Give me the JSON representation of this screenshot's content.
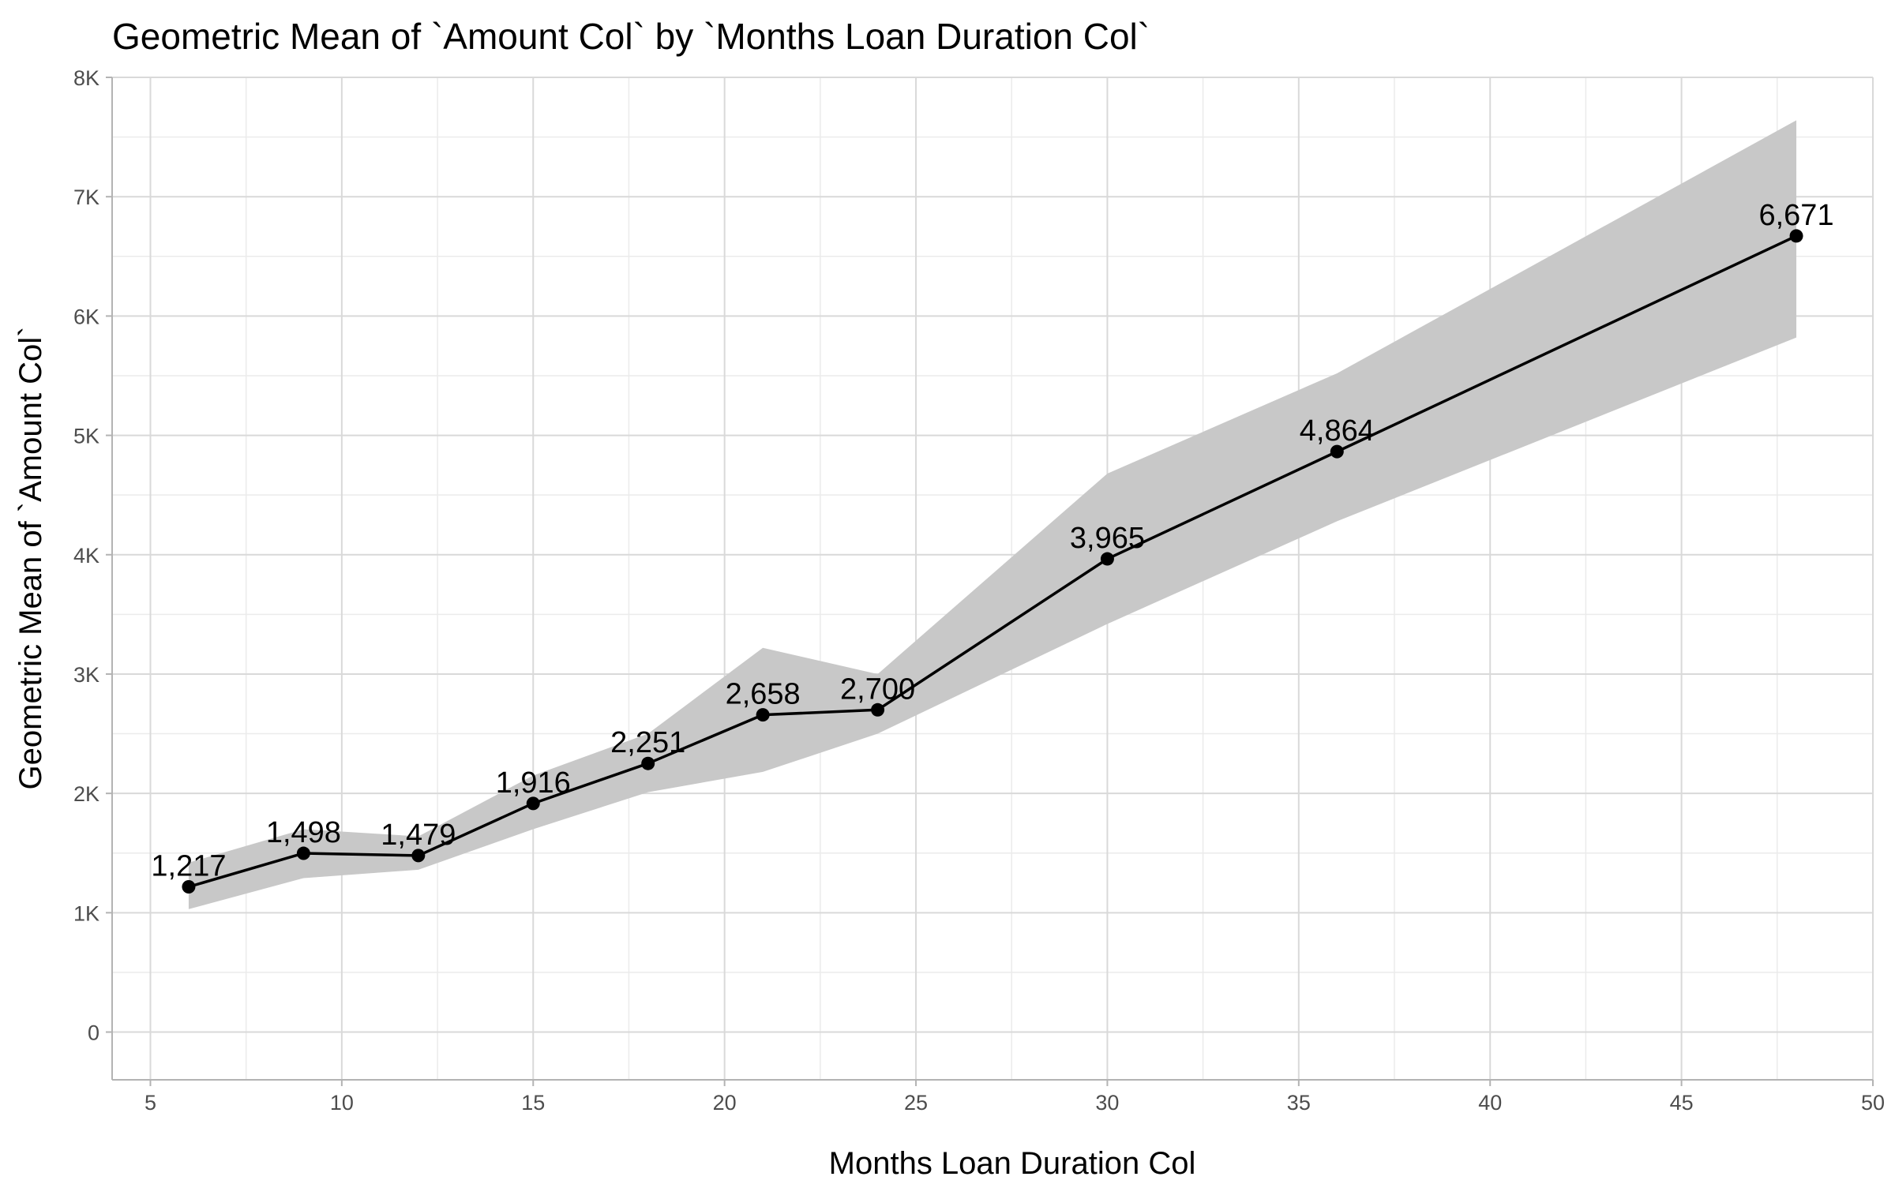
{
  "chart_data": {
    "type": "line",
    "title": "Geometric Mean of `Amount Col` by `Months Loan Duration Col`",
    "xlabel": "Months Loan Duration Col",
    "ylabel": "Geometric Mean of `Amount Col`",
    "xlim": [
      4,
      50
    ],
    "ylim": [
      -400,
      8000
    ],
    "xticks": [
      5,
      10,
      15,
      20,
      25,
      30,
      35,
      40,
      45,
      50
    ],
    "xtick_labels": [
      "5",
      "10",
      "15",
      "20",
      "25",
      "30",
      "35",
      "40",
      "45",
      "50"
    ],
    "yticks": [
      0,
      1000,
      2000,
      3000,
      4000,
      5000,
      6000,
      7000,
      8000
    ],
    "ytick_labels": [
      "0",
      "1K",
      "2K",
      "3K",
      "4K",
      "5K",
      "6K",
      "7K",
      "8K"
    ],
    "grid": true,
    "x": [
      6,
      9,
      12,
      15,
      18,
      21,
      24,
      30,
      36,
      48
    ],
    "values": [
      1217,
      1498,
      1479,
      1916,
      2251,
      2658,
      2700,
      3965,
      4864,
      6671
    ],
    "value_labels": [
      "1,217",
      "1,498",
      "1,479",
      "1,916",
      "2,251",
      "2,658",
      "2,700",
      "3,965",
      "4,864",
      "6,671"
    ],
    "band_upper": [
      1420,
      1700,
      1640,
      2150,
      2500,
      3220,
      3000,
      4680,
      5520,
      7640
    ],
    "band_lower": [
      1030,
      1290,
      1360,
      1700,
      2010,
      2180,
      2500,
      3420,
      4280,
      5820
    ],
    "line_color": "#000000",
    "band_color": "#c8c8c8"
  }
}
